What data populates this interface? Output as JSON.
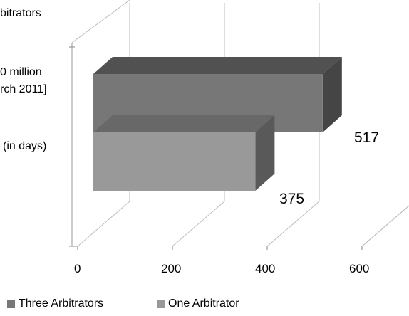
{
  "chart_data": {
    "type": "bar",
    "orientation": "horizontal",
    "style": "3d",
    "categories_partial_text": [
      "bitrators",
      "0 million",
      "rch 2011]",
      "(in days)"
    ],
    "series": [
      {
        "name": "Three Arbitrators",
        "value": 517,
        "color": "#777777"
      },
      {
        "name": "One Arbitrator",
        "value": 375,
        "color": "#999999"
      }
    ],
    "x_ticks": [
      "0",
      "200",
      "400",
      "600"
    ],
    "xlim": [
      0,
      600
    ],
    "grid": true,
    "legend_position": "bottom"
  }
}
